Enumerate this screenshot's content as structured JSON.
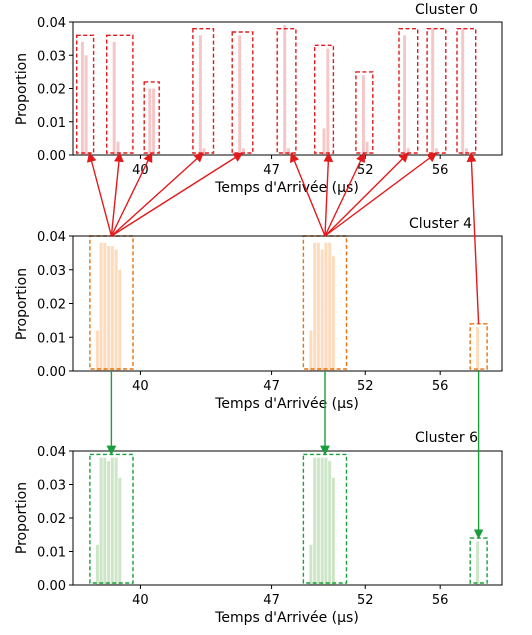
{
  "chart_data": [
    {
      "type": "bar",
      "title": "Cluster 0",
      "xlabel": "Temps d'Arrivée (µs)",
      "ylabel": "Proportion",
      "xticks": [
        40,
        47,
        52,
        56
      ],
      "xticklabels": [
        "40",
        "47",
        "52",
        "56"
      ],
      "yticks": [
        0.0,
        0.01,
        0.02,
        0.03,
        0.04
      ],
      "yticklabels": [
        "0.00",
        "0.01",
        "0.02",
        "0.03",
        "0.04"
      ],
      "ylim": [
        0,
        0.04
      ],
      "color": "#f4c7c9",
      "highlight_color": "#e31a1c",
      "bars": [
        {
          "x": 36.9,
          "y": 0.034
        },
        {
          "x": 37.1,
          "y": 0.03
        },
        {
          "x": 38.6,
          "y": 0.034
        },
        {
          "x": 38.8,
          "y": 0.004
        },
        {
          "x": 40.5,
          "y": 0.02
        },
        {
          "x": 40.7,
          "y": 0.02
        },
        {
          "x": 43.2,
          "y": 0.036
        },
        {
          "x": 43.4,
          "y": 0.002
        },
        {
          "x": 45.3,
          "y": 0.036
        },
        {
          "x": 45.5,
          "y": 0.002
        },
        {
          "x": 47.7,
          "y": 0.039
        },
        {
          "x": 47.9,
          "y": 0.002
        },
        {
          "x": 50.0,
          "y": 0.032
        },
        {
          "x": 49.8,
          "y": 0.008
        },
        {
          "x": 51.9,
          "y": 0.024
        },
        {
          "x": 52.1,
          "y": 0.004
        },
        {
          "x": 54.1,
          "y": 0.036
        },
        {
          "x": 54.3,
          "y": 0.002
        },
        {
          "x": 55.6,
          "y": 0.038
        },
        {
          "x": 55.8,
          "y": 0.002
        },
        {
          "x": 57.2,
          "y": 0.038
        },
        {
          "x": 57.4,
          "y": 0.002
        }
      ],
      "boxes": [
        {
          "x0": 36.6,
          "x1": 37.5,
          "ytop": 0.036
        },
        {
          "x0": 38.2,
          "x1": 39.6,
          "ytop": 0.036
        },
        {
          "x0": 40.2,
          "x1": 41.0,
          "ytop": 0.022
        },
        {
          "x0": 42.8,
          "x1": 43.9,
          "ytop": 0.038
        },
        {
          "x0": 44.9,
          "x1": 46.0,
          "ytop": 0.037
        },
        {
          "x0": 47.3,
          "x1": 48.3,
          "ytop": 0.038
        },
        {
          "x0": 49.3,
          "x1": 50.3,
          "ytop": 0.033
        },
        {
          "x0": 51.5,
          "x1": 52.4,
          "ytop": 0.025
        },
        {
          "x0": 53.8,
          "x1": 54.8,
          "ytop": 0.038
        },
        {
          "x0": 55.3,
          "x1": 56.3,
          "ytop": 0.038
        },
        {
          "x0": 56.9,
          "x1": 57.9,
          "ytop": 0.038
        }
      ]
    },
    {
      "type": "bar",
      "title": "Cluster 4",
      "xlabel": "Temps d'Arrivée (µs)",
      "ylabel": "Proportion",
      "xticks": [
        40,
        47,
        52,
        56
      ],
      "xticklabels": [
        "40",
        "47",
        "52",
        "56"
      ],
      "yticks": [
        0.0,
        0.01,
        0.02,
        0.03,
        0.04
      ],
      "yticklabels": [
        "0.00",
        "0.01",
        "0.02",
        "0.03",
        "0.04"
      ],
      "ylim": [
        0,
        0.04
      ],
      "color": "#fddcbd",
      "highlight_color": "#e8730d",
      "bars": [
        {
          "x": 37.7,
          "y": 0.012
        },
        {
          "x": 37.9,
          "y": 0.038
        },
        {
          "x": 38.1,
          "y": 0.038
        },
        {
          "x": 38.3,
          "y": 0.037
        },
        {
          "x": 38.5,
          "y": 0.037
        },
        {
          "x": 38.7,
          "y": 0.036
        },
        {
          "x": 38.9,
          "y": 0.03
        },
        {
          "x": 49.1,
          "y": 0.012
        },
        {
          "x": 49.3,
          "y": 0.038
        },
        {
          "x": 49.5,
          "y": 0.038
        },
        {
          "x": 49.7,
          "y": 0.036
        },
        {
          "x": 49.9,
          "y": 0.038
        },
        {
          "x": 50.1,
          "y": 0.038
        },
        {
          "x": 50.3,
          "y": 0.034
        },
        {
          "x": 58.0,
          "y": 0.013
        }
      ],
      "boxes": [
        {
          "x0": 37.3,
          "x1": 39.6,
          "ytop": 0.04
        },
        {
          "x0": 48.7,
          "x1": 51.0,
          "ytop": 0.04
        },
        {
          "x0": 57.6,
          "x1": 58.5,
          "ytop": 0.014
        }
      ]
    },
    {
      "type": "bar",
      "title": "Cluster 6",
      "xlabel": "Temps d'Arrivée (µs)",
      "ylabel": "Proportion",
      "xticks": [
        40,
        47,
        52,
        56
      ],
      "xticklabels": [
        "40",
        "47",
        "52",
        "56"
      ],
      "yticks": [
        0.0,
        0.01,
        0.02,
        0.03,
        0.04
      ],
      "yticklabels": [
        "0.00",
        "0.01",
        "0.02",
        "0.03",
        "0.04"
      ],
      "ylim": [
        0,
        0.04
      ],
      "color": "#cde6c7",
      "highlight_color": "#1a9e3a",
      "bars": [
        {
          "x": 37.7,
          "y": 0.012
        },
        {
          "x": 37.9,
          "y": 0.038
        },
        {
          "x": 38.1,
          "y": 0.038
        },
        {
          "x": 38.3,
          "y": 0.037
        },
        {
          "x": 38.5,
          "y": 0.038
        },
        {
          "x": 38.7,
          "y": 0.038
        },
        {
          "x": 38.9,
          "y": 0.032
        },
        {
          "x": 49.1,
          "y": 0.012
        },
        {
          "x": 49.3,
          "y": 0.038
        },
        {
          "x": 49.5,
          "y": 0.038
        },
        {
          "x": 49.7,
          "y": 0.038
        },
        {
          "x": 49.9,
          "y": 0.038
        },
        {
          "x": 50.1,
          "y": 0.037
        },
        {
          "x": 50.3,
          "y": 0.032
        },
        {
          "x": 58.0,
          "y": 0.013
        }
      ],
      "boxes": [
        {
          "x0": 37.3,
          "x1": 39.6,
          "ytop": 0.039
        },
        {
          "x0": 48.7,
          "x1": 51.0,
          "ytop": 0.039
        },
        {
          "x0": 57.6,
          "x1": 58.5,
          "ytop": 0.014
        }
      ]
    }
  ],
  "links": [
    {
      "from_panel": 1,
      "from_box": 0,
      "to_panel": 0,
      "to_boxes": [
        0,
        1,
        2,
        3,
        4
      ],
      "color": "#e31a1c"
    },
    {
      "from_panel": 1,
      "from_box": 1,
      "to_panel": 0,
      "to_boxes": [
        5,
        6,
        7,
        8,
        9
      ],
      "color": "#e31a1c"
    },
    {
      "from_panel": 1,
      "from_box": 2,
      "to_panel": 0,
      "to_boxes": [
        10
      ],
      "color": "#e31a1c"
    },
    {
      "from_panel": 1,
      "from_box": 0,
      "to_panel": 2,
      "to_boxes": [
        0
      ],
      "color": "#1a9e3a"
    },
    {
      "from_panel": 1,
      "from_box": 1,
      "to_panel": 2,
      "to_boxes": [
        1
      ],
      "color": "#1a9e3a"
    },
    {
      "from_panel": 1,
      "from_box": 2,
      "to_panel": 2,
      "to_boxes": [
        2
      ],
      "color": "#1a9e3a"
    }
  ]
}
